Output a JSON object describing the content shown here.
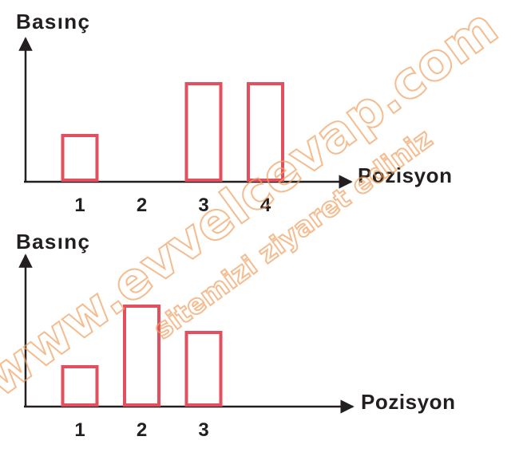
{
  "chart_data": [
    {
      "type": "bar",
      "y_label": "Basınç",
      "x_label": "Pozisyon",
      "categories": [
        "1",
        "2",
        "3",
        "4"
      ],
      "values": [
        60,
        0,
        125,
        125
      ],
      "color": "#e2505f",
      "ylim": [
        0,
        170
      ]
    },
    {
      "type": "bar",
      "y_label": "Basınç",
      "x_label": "Pozisyon",
      "categories": [
        "1",
        "2",
        "3",
        null
      ],
      "values": [
        52,
        128,
        95,
        0
      ],
      "color": "#e2505f",
      "ylim": [
        0,
        180
      ]
    }
  ],
  "watermark": {
    "text": "www.evvelcevap.com",
    "subtext": "sitemizi ziyaret ediniz"
  }
}
